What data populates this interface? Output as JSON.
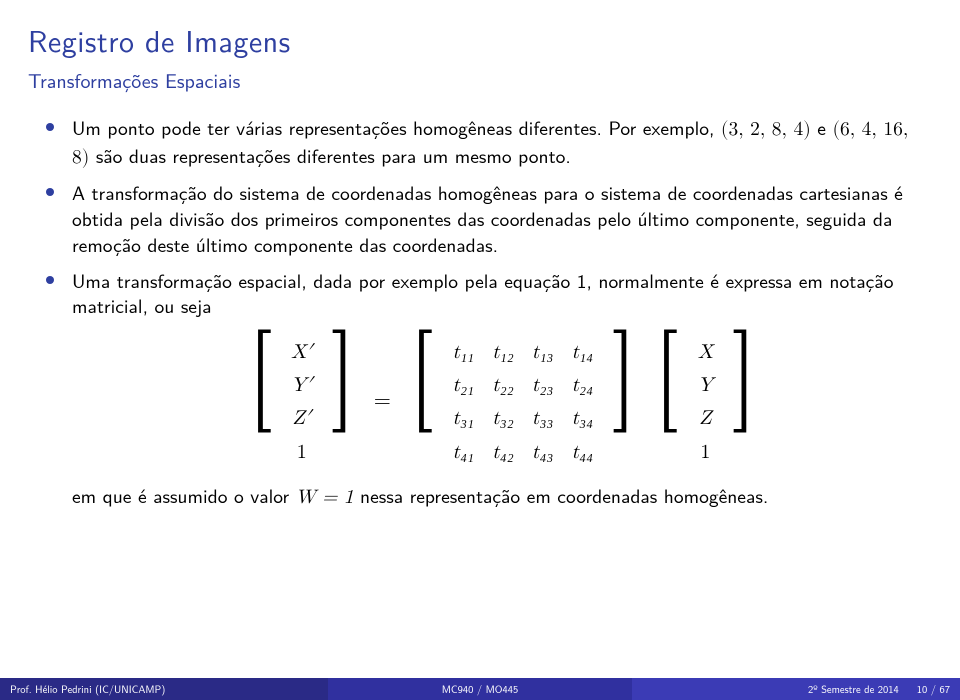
{
  "title": "Registro de Imagens",
  "subtitle": "Transformações Espaciais",
  "bullets": {
    "b1a": "Um ponto pode ter várias representações homogêneas diferentes. Por exemplo, ",
    "b1b": "(3, 2, 8, 4)",
    "b1c": " e ",
    "b1d": "(6, 4, 16, 8)",
    "b1e": " são duas representações diferentes para um mesmo ponto.",
    "b2": "A transformação do sistema de coordenadas homogêneas para o sistema de coordenadas cartesianas é obtida pela divisão dos primeiros componentes das coordenadas pelo último componente, seguida da remoção deste último componente das coordenadas.",
    "b3": "Uma transformação espacial, dada por exemplo pela equação 1, normalmente é expressa em notação matricial, ou seja",
    "b4a": "em que é assumido o valor ",
    "b4b": "W = 1",
    "b4c": " nessa representação em coordenadas homogêneas."
  },
  "matrix": {
    "left_vec": [
      "X′",
      "Y′",
      "Z′",
      "1"
    ],
    "t": [
      [
        "t₁₁",
        "t₁₂",
        "t₁₃",
        "t₁₄"
      ],
      [
        "t₂₁",
        "t₂₂",
        "t₂₃",
        "t₂₄"
      ],
      [
        "t₃₁",
        "t₃₂",
        "t₃₃",
        "t₃₄"
      ],
      [
        "t₄₁",
        "t₄₂",
        "t₄₃",
        "t₄₄"
      ]
    ],
    "right_vec": [
      "X",
      "Y",
      "Z",
      "1"
    ]
  },
  "footer": {
    "left": "Prof. Hélio Pedrini (IC/UNICAMP)",
    "center": "MC940 / MO445",
    "right_a": "2º Semestre de 2014",
    "right_b": "10 / 67"
  }
}
